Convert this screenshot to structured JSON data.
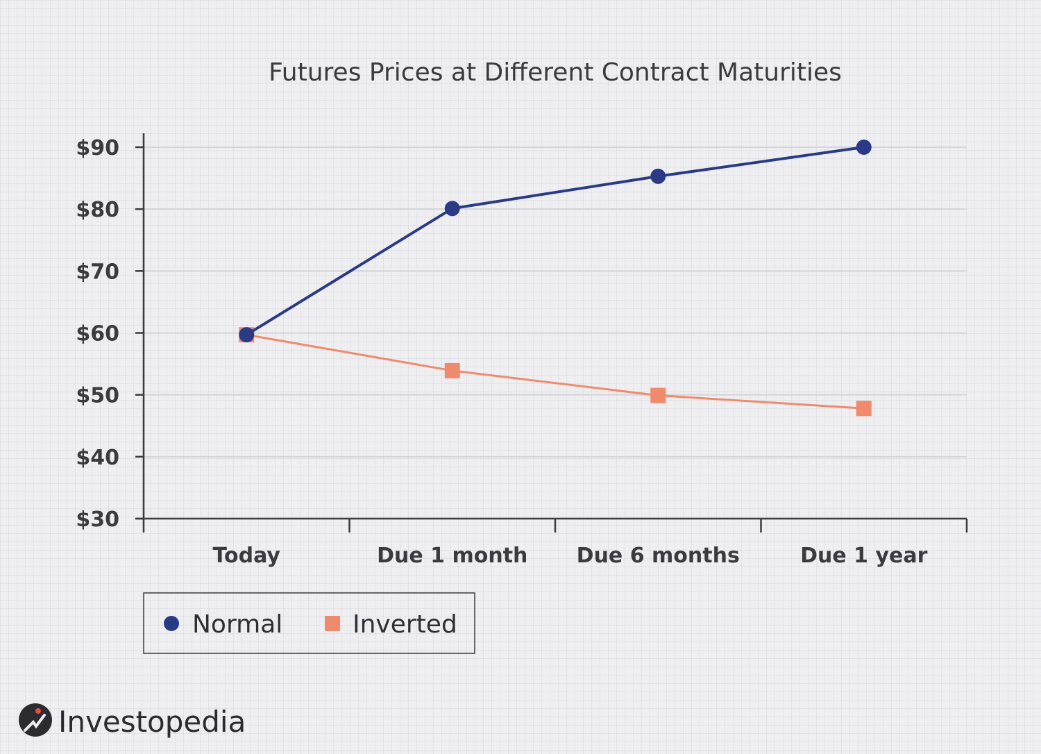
{
  "chart_data": {
    "type": "line",
    "title": "Futures Prices at Different Contract Maturities",
    "xlabel": "",
    "ylabel": "",
    "categories": [
      "Today",
      "Due 1 month",
      "Due 6 months",
      "Due 1 year"
    ],
    "ylim": [
      30,
      90
    ],
    "yticks": [
      30,
      40,
      50,
      60,
      70,
      80,
      90
    ],
    "ytick_labels": [
      "$30",
      "$40",
      "$50",
      "$60",
      "$70",
      "$80",
      "$90"
    ],
    "grid": true,
    "legend_position": "bottom-left",
    "series": [
      {
        "name": "Normal",
        "values": [
          59.7,
          80.1,
          85.3,
          90.0
        ],
        "color": "#2b3a86",
        "marker": "circle"
      },
      {
        "name": "Inverted",
        "values": [
          59.7,
          53.9,
          49.9,
          47.8
        ],
        "color": "#f08a6c",
        "marker": "square"
      }
    ]
  },
  "colors": {
    "background": "#efeff2",
    "axis": "#3b3b3f",
    "grid": "#d4d4d9",
    "legend_border": "#3b3b3f"
  },
  "logo": {
    "text": "Investopedia",
    "icon": "investopedia-logo-icon"
  }
}
